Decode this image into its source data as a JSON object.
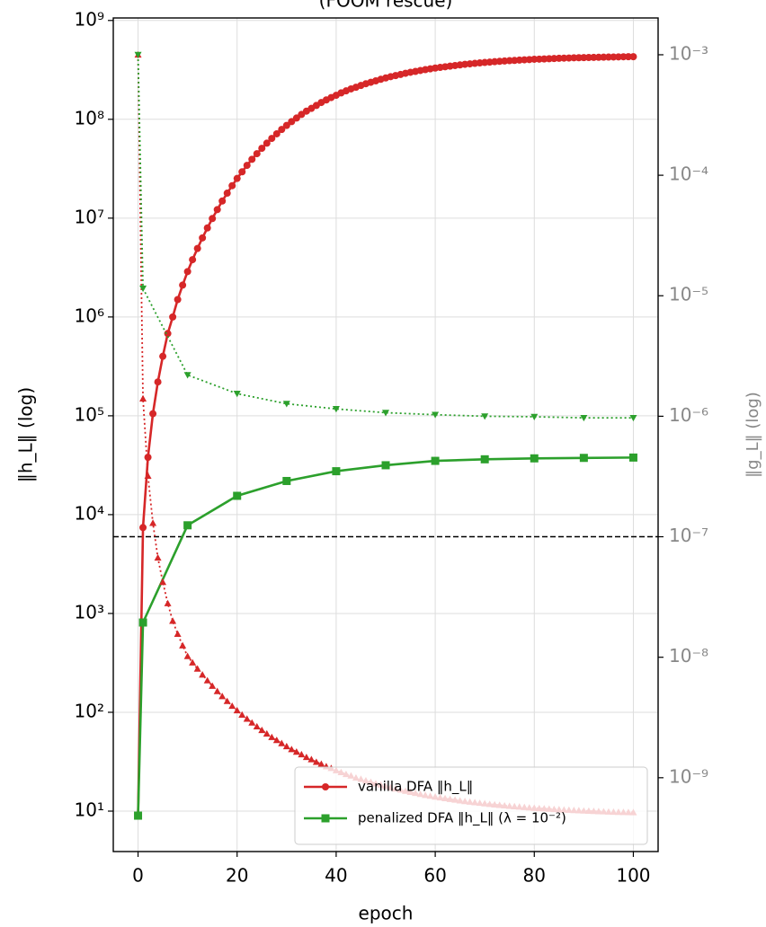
{
  "chart_data": {
    "type": "line",
    "title": "(FOOM rescue)",
    "xlabel": "epoch",
    "ylabel": "‖h_L‖ (log)",
    "y2label": "‖g_L‖ (log)",
    "xlim": [
      -5,
      105
    ],
    "xticks": [
      0,
      20,
      40,
      60,
      80,
      100
    ],
    "ylim": [
      3.9,
      1060000000.0
    ],
    "yscale": "log",
    "yticks": [
      {
        "value": 10,
        "label": "10¹"
      },
      {
        "value": 100,
        "label": "10²"
      },
      {
        "value": 1000,
        "label": "10³"
      },
      {
        "value": 10000,
        "label": "10⁴"
      },
      {
        "value": 100000,
        "label": "10⁵"
      },
      {
        "value": 1000000,
        "label": "10⁶"
      },
      {
        "value": 10000000,
        "label": "10⁷"
      },
      {
        "value": 100000000,
        "label": "10⁸"
      },
      {
        "value": 1000000000,
        "label": "10⁹"
      }
    ],
    "y2lim": [
      2.44e-10,
      0.00202
    ],
    "y2scale": "log",
    "y2ticks": [
      {
        "value": 1e-09,
        "label": "10⁻⁹"
      },
      {
        "value": 1e-08,
        "label": "10⁻⁸"
      },
      {
        "value": 1e-07,
        "label": "10⁻⁷"
      },
      {
        "value": 1e-06,
        "label": "10⁻⁶"
      },
      {
        "value": 1e-05,
        "label": "10⁻⁵"
      },
      {
        "value": 0.0001,
        "label": "10⁻⁴"
      },
      {
        "value": 0.001,
        "label": "10⁻³"
      }
    ],
    "grid": true,
    "legend": "lower right",
    "hline": {
      "value": 1e-07,
      "axis": "y2",
      "color": "#000000"
    },
    "series": [
      {
        "name": "vanilla DFA ‖h_L‖",
        "color": "#d62728",
        "marker": "circle",
        "linestyle": "solid",
        "axis": "y",
        "x": [
          0,
          1,
          2,
          3,
          4,
          5,
          6,
          7,
          8,
          9,
          10,
          11,
          12,
          13,
          14,
          15,
          16,
          17,
          18,
          19,
          20,
          21,
          22,
          23,
          24,
          25,
          26,
          27,
          28,
          29,
          30,
          31,
          32,
          33,
          34,
          35,
          36,
          37,
          38,
          39,
          40,
          41,
          42,
          43,
          44,
          45,
          46,
          47,
          48,
          49,
          50,
          51,
          52,
          53,
          54,
          55,
          56,
          57,
          58,
          59,
          60,
          61,
          62,
          63,
          64,
          65,
          66,
          67,
          68,
          69,
          70,
          71,
          72,
          73,
          74,
          75,
          76,
          77,
          78,
          79,
          80,
          81,
          82,
          83,
          84,
          85,
          86,
          87,
          88,
          89,
          90,
          91,
          92,
          93,
          94,
          95,
          96,
          97,
          98,
          99,
          100
        ],
        "values": [
          9,
          7400,
          38000,
          105000,
          220000,
          400000,
          680000,
          1000000.0,
          1500000.0,
          2100000.0,
          2880000.0,
          3800000.0,
          4930000.0,
          6310000.0,
          7960000.0,
          9910000.0,
          12200000.0,
          14900000.0,
          17900000.0,
          21300000.0,
          25200000.0,
          29400000.0,
          34200000.0,
          39400000.0,
          44900000.0,
          50900000.0,
          57300000.0,
          64100000.0,
          71300000.0,
          78900000.0,
          86700000.0,
          94800000.0,
          103000000.0,
          112000000.0,
          121000000.0,
          129000000.0,
          138000000.0,
          148000000.0,
          157000000.0,
          166000000.0,
          175000000.0,
          185000000.0,
          194000000.0,
          203000000.0,
          211000000.0,
          220000000.0,
          229000000.0,
          237000000.0,
          245000000.0,
          254000000.0,
          262000000.0,
          270000000.0,
          277000000.0,
          284000000.0,
          292000000.0,
          299000000.0,
          305000000.0,
          312000000.0,
          318000000.0,
          324000000.0,
          330000000.0,
          335000000.0,
          340000000.0,
          345000000.0,
          350000000.0,
          355000000.0,
          360000000.0,
          364000000.0,
          368000000.0,
          372000000.0,
          376000000.0,
          379000000.0,
          383000000.0,
          386000000.0,
          389000000.0,
          392000000.0,
          394000000.0,
          397000000.0,
          400000000.0,
          402000000.0,
          405000000.0,
          406000000.0,
          408000000.0,
          410000000.0,
          412000000.0,
          414000000.0,
          416000000.0,
          417000000.0,
          419000000.0,
          420000000.0,
          421000000.0,
          422000000.0,
          423000000.0,
          424000000.0,
          425000000.0,
          426000000.0,
          427000000.0,
          428000000.0,
          429000000.0,
          430000000.0,
          430000000.0
        ]
      },
      {
        "name": "penalized DFA ‖h_L‖ (λ = 10⁻²)",
        "color": "#2ca02c",
        "marker": "square",
        "linestyle": "solid",
        "axis": "y",
        "x": [
          0,
          1,
          10,
          20,
          30,
          40,
          50,
          60,
          70,
          80,
          90,
          100
        ],
        "values": [
          9,
          810,
          7800,
          15500,
          21900,
          27500,
          31600,
          35000,
          36300,
          37100,
          37500,
          37800
        ]
      },
      {
        "color": "#d62728",
        "marker": "triangle-up",
        "linestyle": "dotted",
        "axis": "y2",
        "x": [
          0,
          1,
          2,
          3,
          4,
          5,
          6,
          7,
          8,
          9,
          10,
          11,
          12,
          13,
          14,
          15,
          16,
          17,
          18,
          19,
          20,
          21,
          22,
          23,
          24,
          25,
          26,
          27,
          28,
          29,
          30,
          31,
          32,
          33,
          34,
          35,
          36,
          37,
          38,
          39,
          40,
          41,
          42,
          43,
          44,
          45,
          46,
          47,
          48,
          49,
          50,
          51,
          52,
          53,
          54,
          55,
          56,
          57,
          58,
          59,
          60,
          61,
          62,
          63,
          64,
          65,
          66,
          67,
          68,
          69,
          70,
          71,
          72,
          73,
          74,
          75,
          76,
          77,
          78,
          79,
          80,
          81,
          82,
          83,
          84,
          85,
          86,
          87,
          88,
          89,
          90,
          91,
          92,
          93,
          94,
          95,
          96,
          97,
          98,
          99,
          100
        ],
        "values": [
          0.001,
          1.4e-06,
          3.2e-07,
          1.3e-07,
          6.7e-08,
          4.2e-08,
          2.8e-08,
          2e-08,
          1.56e-08,
          1.25e-08,
          1.02e-08,
          9.03e-09,
          8.02e-09,
          7.16e-09,
          6.41e-09,
          5.78e-09,
          5.22e-09,
          4.74e-09,
          4.32e-09,
          3.94e-09,
          3.62e-09,
          3.33e-09,
          3.08e-09,
          2.86e-09,
          2.66e-09,
          2.48e-09,
          2.32e-09,
          2.17e-09,
          2.05e-09,
          1.93e-09,
          1.82e-09,
          1.72e-09,
          1.64e-09,
          1.56e-09,
          1.48e-09,
          1.42e-09,
          1.35e-09,
          1.3e-09,
          1.24e-09,
          1.2e-09,
          1.15e-09,
          1.11e-09,
          1.07e-09,
          1.04e-09,
          1e-09,
          9.75e-10,
          9.46e-10,
          9.2e-10,
          8.95e-10,
          8.73e-10,
          8.51e-10,
          8.3e-10,
          8.11e-10,
          7.93e-10,
          7.76e-10,
          7.6e-10,
          7.45e-10,
          7.31e-10,
          7.18e-10,
          7.06e-10,
          6.95e-10,
          6.84e-10,
          6.74e-10,
          6.64e-10,
          6.55e-10,
          6.46e-10,
          6.38e-10,
          6.31e-10,
          6.24e-10,
          6.17e-10,
          6.11e-10,
          6.04e-10,
          5.98e-10,
          5.93e-10,
          5.87e-10,
          5.82e-10,
          5.78e-10,
          5.74e-10,
          5.69e-10,
          5.65e-10,
          5.61e-10,
          5.57e-10,
          5.55e-10,
          5.51e-10,
          5.48e-10,
          5.45e-10,
          5.42e-10,
          5.4e-10,
          5.37e-10,
          5.35e-10,
          5.32e-10,
          5.3e-10,
          5.28e-10,
          5.26e-10,
          5.24e-10,
          5.22e-10,
          5.2e-10,
          5.19e-10,
          5.18e-10,
          5.17e-10,
          5.16e-10
        ]
      },
      {
        "color": "#2ca02c",
        "marker": "triangle-down",
        "linestyle": "dotted",
        "axis": "y2",
        "x": [
          0,
          1,
          10,
          20,
          30,
          40,
          50,
          60,
          70,
          80,
          90,
          100
        ],
        "values": [
          0.001,
          1.15e-05,
          2.2e-06,
          1.54e-06,
          1.27e-06,
          1.15e-06,
          1.07e-06,
          1.03e-06,
          1e-06,
          9.9e-07,
          9.7e-07,
          9.7e-07
        ]
      }
    ]
  }
}
